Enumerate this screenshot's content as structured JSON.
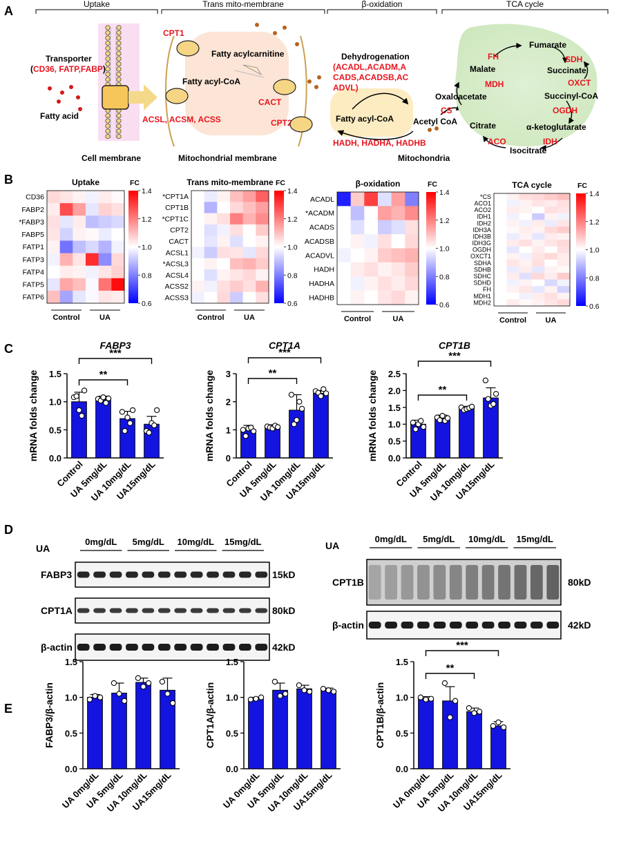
{
  "panel_labels": {
    "a": "A",
    "b": "B",
    "c": "C",
    "d": "D",
    "e": "E"
  },
  "panel_a": {
    "section_headers": {
      "uptake": "Uptake",
      "trans": "Trans mito-membrane",
      "beta": "β-oxidation",
      "tca": "TCA cycle"
    },
    "transporter_label": "Transporter",
    "transporter_open": "(",
    "transporter_genes": "CD36, FATP,FABP",
    "transporter_close": ")",
    "fatty_acid": "Fatty acid",
    "cpt1": "CPT1",
    "fatty_acylcarnitine": "Fatty acylcarnitine",
    "fatty_acyl_coa_1": "Fatty acyl-CoA",
    "cact": "CACT",
    "acsl": "ACSL, ACSM, ACSS",
    "cpt2": "CPT2",
    "dehydrogenation": "Dehydrogenation",
    "dehyd_line1": "(ACADL,ACADM,A",
    "dehyd_line2": "CADS,ACADSB,AC",
    "dehyd_line3": "ADVL)",
    "fatty_acyl_coa_2": "Fatty acyl-CoA",
    "acetyl_coa": "Acetyl CoA",
    "hadh": "HADH, HADHA, HADHB",
    "cell_membrane": "Cell membrane",
    "mito_membrane": "Mitochondrial membrane",
    "mitochondria": "Mitochondria",
    "tca": {
      "fumarate": "Fumarate",
      "malate": "Malate",
      "succinate": "Succinate",
      "oxaloacetate": "Oxaloacetate",
      "succinyl_coa": "Succinyl-CoA",
      "citrate": "Citrate",
      "akg": "α-ketoglutarate",
      "isocitrate": "Isocitrate",
      "fh": "FH",
      "sdh": "SDH",
      "mdh": "MDH",
      "oxct": "OXCT",
      "cs": "CS",
      "ogdh": "OGDH",
      "aco": "ACO",
      "idh": "IDH"
    }
  },
  "panel_b": {
    "colorbar": {
      "title": "FC",
      "ticks": [
        "1.4",
        "1.2",
        "1.0",
        "0.8",
        "0.6"
      ],
      "min": 0.6,
      "max": 1.4
    },
    "x_groups": [
      "Control",
      "UA"
    ],
    "heatmaps": [
      {
        "title": "Uptake",
        "rows": [
          "CD36",
          "FABP2",
          "*FABP3",
          "FABP5",
          "FATP1",
          "FATP3",
          "FATP4",
          "FATP5",
          "FATP6"
        ],
        "values": [
          [
            1.06,
            1.04,
            1.02,
            0.98,
            1.03,
            1.01
          ],
          [
            1.03,
            1.28,
            1.15,
            0.96,
            1.07,
            1.05
          ],
          [
            1.05,
            0.96,
            1.03,
            0.9,
            0.92,
            0.94
          ],
          [
            1.04,
            0.93,
            1.02,
            1.01,
            0.97,
            1.0
          ],
          [
            1.02,
            0.78,
            0.9,
            0.94,
            0.88,
            0.98
          ],
          [
            0.98,
            1.12,
            1.04,
            1.33,
            0.82,
            1.06
          ],
          [
            1.0,
            1.03,
            1.02,
            0.98,
            1.04,
            1.07
          ],
          [
            0.96,
            1.14,
            1.1,
            0.99,
            1.22,
            1.38
          ],
          [
            1.1,
            0.86,
            0.96,
            0.99,
            1.04,
            1.03
          ]
        ]
      },
      {
        "title": "Trans mito-membrane",
        "rows": [
          "*CPT1A",
          "CPT1B",
          "*CPT1C",
          "CPT2",
          "CACT",
          "ACSL1",
          "*ACSL3",
          "ACSL4",
          "ACSS2",
          "ACSS3"
        ],
        "values": [
          [
            1.0,
            0.97,
            1.02,
            1.1,
            1.15,
            1.25
          ],
          [
            1.0,
            0.88,
            1.0,
            1.06,
            1.1,
            1.15
          ],
          [
            1.0,
            1.02,
            1.05,
            1.2,
            1.12,
            1.18
          ],
          [
            1.0,
            0.95,
            0.98,
            1.05,
            1.0,
            1.08
          ],
          [
            1.0,
            0.96,
            1.02,
            0.95,
            1.0,
            1.02
          ],
          [
            0.98,
            0.92,
            1.05,
            1.04,
            0.96,
            1.06
          ],
          [
            1.0,
            1.02,
            1.0,
            1.1,
            1.12,
            1.08
          ],
          [
            1.0,
            0.95,
            1.02,
            1.04,
            1.06,
            1.02
          ],
          [
            1.02,
            0.98,
            1.05,
            1.08,
            1.05,
            1.12
          ],
          [
            0.98,
            1.0,
            1.06,
            0.92,
            1.0,
            1.05
          ]
        ]
      },
      {
        "title": "β-oxidation",
        "rows": [
          "ACADL",
          "*ACADM",
          "ACADS",
          "ACADSB",
          "ACADVL",
          "HADH",
          "HADHA",
          "HADHB"
        ],
        "values": [
          [
            0.65,
            1.08,
            1.3,
            0.95,
            1.15,
            0.8
          ],
          [
            1.0,
            0.9,
            1.0,
            1.15,
            1.12,
            1.18
          ],
          [
            1.0,
            0.95,
            1.0,
            0.92,
            0.95,
            1.05
          ],
          [
            1.0,
            1.02,
            0.98,
            1.05,
            1.0,
            1.06
          ],
          [
            0.98,
            1.0,
            1.02,
            1.08,
            1.1,
            1.12
          ],
          [
            1.0,
            1.03,
            1.05,
            1.02,
            1.04,
            1.08
          ],
          [
            1.0,
            0.98,
            1.02,
            1.05,
            1.03,
            1.06
          ],
          [
            1.0,
            1.02,
            1.0,
            1.04,
            1.06,
            1.02
          ]
        ]
      },
      {
        "title": "TCA cycle",
        "rows": [
          "*CS",
          "ACO1",
          "ACO2",
          "IDH1",
          "IDH2",
          "IDH3A",
          "IDH3B",
          "IDH3G",
          "OGDH",
          "OXCT1",
          "SDHA",
          "SDHB",
          "SDHC",
          "SDHD",
          "FH",
          "MDH1",
          "MDH2"
        ],
        "values": [
          [
            1.0,
            1.02,
            1.05,
            1.06,
            1.08,
            1.1
          ],
          [
            1.0,
            0.98,
            1.02,
            1.04,
            1.03,
            1.05
          ],
          [
            1.0,
            1.03,
            1.02,
            1.0,
            1.05,
            1.04
          ],
          [
            1.0,
            0.98,
            1.0,
            0.92,
            1.02,
            0.98
          ],
          [
            1.0,
            1.02,
            0.98,
            1.03,
            0.97,
            1.04
          ],
          [
            1.0,
            1.01,
            1.03,
            1.02,
            1.06,
            1.08
          ],
          [
            1.0,
            0.97,
            1.02,
            0.96,
            1.03,
            1.02
          ],
          [
            1.0,
            1.03,
            1.05,
            1.02,
            1.04,
            1.06
          ],
          [
            1.0,
            0.96,
            1.0,
            1.03,
            1.0,
            1.05
          ],
          [
            1.0,
            1.02,
            0.98,
            1.04,
            1.06,
            1.03
          ],
          [
            1.0,
            1.04,
            1.02,
            1.05,
            1.0,
            1.03
          ],
          [
            1.0,
            0.97,
            1.03,
            0.96,
            1.02,
            1.01
          ],
          [
            1.0,
            1.03,
            0.95,
            1.06,
            1.03,
            1.08
          ],
          [
            1.0,
            0.98,
            1.02,
            1.0,
            0.94,
            0.98
          ],
          [
            1.0,
            1.02,
            1.04,
            0.96,
            1.02,
            0.93
          ],
          [
            1.0,
            1.0,
            0.98,
            1.03,
            1.05,
            1.02
          ],
          [
            1.0,
            1.03,
            1.01,
            1.02,
            1.04,
            1.06
          ]
        ]
      }
    ]
  },
  "chart_data": [
    {
      "type": "bar",
      "title": "FABP3",
      "ylabel": "mRNA folds change",
      "categories": [
        "Control",
        "UA 5mg/dL",
        "UA 10mg/dL",
        "UA15mg/dL"
      ],
      "values": [
        1.0,
        1.04,
        0.7,
        0.6
      ],
      "errors": [
        0.17,
        0.06,
        0.13,
        0.14
      ],
      "points": [
        [
          1.08,
          1.1,
          0.85,
          0.75,
          1.2
        ],
        [
          1.05,
          1.02,
          1.08,
          0.98,
          1.06
        ],
        [
          0.82,
          0.48,
          0.72,
          0.62,
          0.85
        ],
        [
          0.48,
          0.45,
          0.62,
          0.58,
          0.85
        ]
      ],
      "ylim": [
        0,
        1.5
      ],
      "yticks": [
        0,
        0.5,
        1.0,
        1.5
      ],
      "ytick_labels": [
        "0.0",
        "0.5",
        "1.0",
        "1.5"
      ],
      "significance": [
        {
          "label": "**",
          "from": 0,
          "to": 2
        },
        {
          "label": "***",
          "from": 0,
          "to": 3
        }
      ]
    },
    {
      "type": "bar",
      "title": "CPT1A",
      "ylabel": "mRNA folds change",
      "categories": [
        "Control",
        "UA 5mg/dL",
        "UA 10mg/dL",
        "UA15mg/dL"
      ],
      "values": [
        1.0,
        1.1,
        1.7,
        2.3
      ],
      "errors": [
        0.16,
        0.08,
        0.55,
        0.1
      ],
      "points": [
        [
          1.0,
          0.78,
          1.05,
          1.08,
          0.95
        ],
        [
          1.12,
          1.08,
          1.05,
          1.15,
          1.1
        ],
        [
          2.25,
          1.2,
          1.35,
          2.0,
          1.75
        ],
        [
          2.38,
          2.32,
          2.2,
          2.45,
          2.3
        ]
      ],
      "ylim": [
        0,
        3
      ],
      "yticks": [
        0,
        1,
        2,
        3
      ],
      "ytick_labels": [
        "0",
        "1",
        "2",
        "3"
      ],
      "significance": [
        {
          "label": "**",
          "from": 0,
          "to": 2
        },
        {
          "label": "***",
          "from": 0,
          "to": 3
        }
      ]
    },
    {
      "type": "bar",
      "title": "CPT1B",
      "ylabel": "mRNA folds change",
      "categories": [
        "Control",
        "UA 5mg/dL",
        "UA 10mg/dL",
        "UA15mg/dL"
      ],
      "values": [
        1.0,
        1.17,
        1.47,
        1.78
      ],
      "errors": [
        0.12,
        0.1,
        0.06,
        0.3
      ],
      "points": [
        [
          1.05,
          0.85,
          1.0,
          1.1,
          0.92
        ],
        [
          1.2,
          1.12,
          1.25,
          1.1,
          1.18
        ],
        [
          1.5,
          1.42,
          1.45,
          1.48,
          1.52
        ],
        [
          2.3,
          1.75,
          1.55,
          1.6,
          1.9
        ]
      ],
      "ylim": [
        0,
        2.5
      ],
      "yticks": [
        0,
        0.5,
        1.0,
        1.5,
        2.0,
        2.5
      ],
      "ytick_labels": [
        "0.0",
        "0.5",
        "1.0",
        "1.5",
        "2.0",
        "2.5"
      ],
      "significance": [
        {
          "label": "**",
          "from": 0,
          "to": 2
        },
        {
          "label": "***",
          "from": 0,
          "to": 3
        }
      ]
    },
    {
      "type": "bar",
      "title": "",
      "ylabel": "FABP3/β-actin",
      "categories": [
        "UA 0mg/dL",
        "UA 5mg/dL",
        "UA 10mg/dL",
        "UA15mg/dL"
      ],
      "values": [
        1.0,
        1.06,
        1.21,
        1.1
      ],
      "errors": [
        0.04,
        0.14,
        0.06,
        0.17
      ],
      "points": [
        [
          0.97,
          1.02,
          1.0
        ],
        [
          1.2,
          1.05,
          0.95
        ],
        [
          1.27,
          1.15,
          1.2
        ],
        [
          1.22,
          1.05,
          0.92
        ]
      ],
      "ylim": [
        0,
        1.5
      ],
      "yticks": [
        0,
        0.5,
        1.0,
        1.5
      ],
      "ytick_labels": [
        "0.0",
        "0.5",
        "1.0",
        "1.5"
      ],
      "significance": []
    },
    {
      "type": "bar",
      "title": "",
      "ylabel": "CPT1A/β-actin",
      "categories": [
        "UA 0mg/dL",
        "UA 5mg/dL",
        "UA 10mg/dL",
        "UA15mg/dL"
      ],
      "values": [
        0.98,
        1.1,
        1.12,
        1.1
      ],
      "errors": [
        0.02,
        0.1,
        0.05,
        0.03
      ],
      "points": [
        [
          0.97,
          0.98,
          1.0
        ],
        [
          1.22,
          1.02,
          1.05
        ],
        [
          1.17,
          1.1,
          1.08
        ],
        [
          1.12,
          1.1,
          1.08
        ]
      ],
      "ylim": [
        0,
        1.5
      ],
      "yticks": [
        0,
        0.5,
        1.0,
        1.5
      ],
      "ytick_labels": [
        "0.0",
        "0.5",
        "1.0",
        "1.5"
      ],
      "significance": []
    },
    {
      "type": "bar",
      "title": "",
      "ylabel": "CPT1B/β-actin",
      "categories": [
        "UA 0mg/dL",
        "UA 5mg/dL",
        "UA 10mg/dL",
        "UA15mg/dL"
      ],
      "values": [
        0.98,
        0.95,
        0.8,
        0.6
      ],
      "errors": [
        0.03,
        0.2,
        0.05,
        0.06
      ],
      "points": [
        [
          1.0,
          0.97,
          0.98
        ],
        [
          1.2,
          0.72,
          0.95
        ],
        [
          0.85,
          0.78,
          0.8
        ],
        [
          0.6,
          0.65,
          0.58
        ]
      ],
      "ylim": [
        0,
        1.5
      ],
      "yticks": [
        0,
        0.5,
        1.0,
        1.5
      ],
      "ytick_labels": [
        "0.0",
        "0.5",
        "1.0",
        "1.5"
      ],
      "significance": [
        {
          "label": "**",
          "from": 0,
          "to": 2
        },
        {
          "label": "***",
          "from": 0,
          "to": 3
        }
      ]
    }
  ],
  "panel_d": {
    "ua_label": "UA",
    "doses": [
      "0mg/dL",
      "5mg/dL",
      "10mg/dL",
      "15mg/dL"
    ],
    "left_blots": [
      {
        "name": "FABP3",
        "size": "15kD"
      },
      {
        "name": "CPT1A",
        "size": "80kD"
      },
      {
        "name": "β-actin",
        "size": "42kD"
      }
    ],
    "right_blots": [
      {
        "name": "CPT1B",
        "size": "80kD"
      },
      {
        "name": "β-actin",
        "size": "42kD"
      }
    ]
  },
  "colors": {
    "bar": "#1414e0",
    "red_text": "#e8141e",
    "heat_low": "#0000ff",
    "heat_mid": "#ffffff",
    "heat_high": "#ff0000"
  }
}
